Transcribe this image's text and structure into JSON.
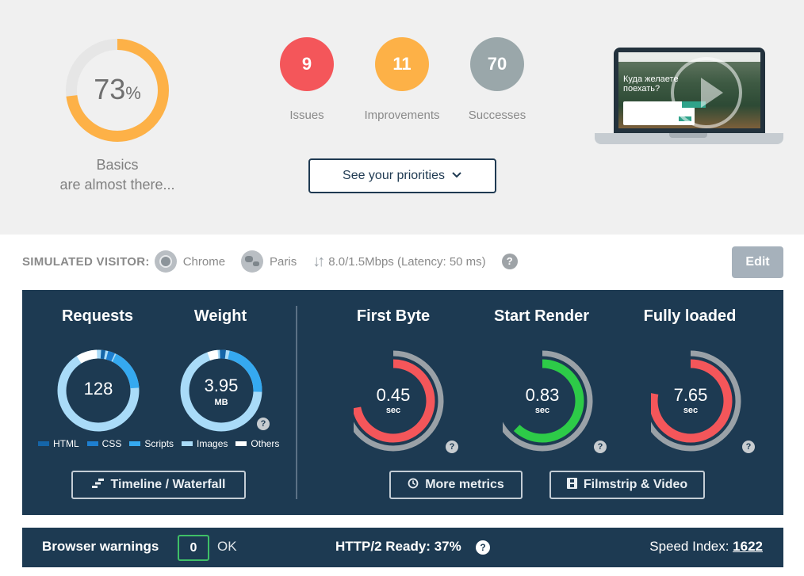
{
  "summary": {
    "score_value": "73",
    "score_unit": "%",
    "score_fraction": 0.73,
    "caption_line1": "Basics",
    "caption_line2": "are almost there...",
    "issues": {
      "count": "9",
      "label": "Issues",
      "color": "#f4565a"
    },
    "improvements": {
      "count": "11",
      "label": "Improvements",
      "color": "#fdb147"
    },
    "successes": {
      "count": "70",
      "label": "Successes",
      "color": "#9aa7aa"
    },
    "priorities_button": "See your priorities",
    "preview_headline": "Куда желаете поехать?"
  },
  "visitor": {
    "label": "SIMULATED VISITOR:",
    "browser": "Chrome",
    "location": "Paris",
    "connection": "8.0/1.5Mbps (Latency: 50 ms)",
    "help": "?",
    "edit_button": "Edit"
  },
  "metrics": {
    "requests": {
      "title": "Requests",
      "value": "128"
    },
    "weight": {
      "title": "Weight",
      "value": "3.95",
      "unit": "MB"
    },
    "legend": [
      {
        "label": "HTML",
        "color": "#1565a8"
      },
      {
        "label": "CSS",
        "color": "#1e7fd0"
      },
      {
        "label": "Scripts",
        "color": "#35a9f0"
      },
      {
        "label": "Images",
        "color": "#a9dbf8"
      },
      {
        "label": "Others",
        "color": "#ffffff"
      }
    ],
    "first_byte": {
      "title": "First Byte",
      "value": "0.45",
      "unit": "sec",
      "color": "#f4565a",
      "fraction": 0.72
    },
    "start_render": {
      "title": "Start Render",
      "value": "0.83",
      "unit": "sec",
      "color": "#2dcb48",
      "fraction": 0.62
    },
    "fully_loaded": {
      "title": "Fully loaded",
      "value": "7.65",
      "unit": "sec",
      "color": "#f4565a",
      "fraction": 0.78
    },
    "timeline_button": "Timeline / Waterfall",
    "more_metrics_button": "More metrics",
    "filmstrip_button": "Filmstrip & Video"
  },
  "bottom": {
    "browser_warnings_label": "Browser warnings",
    "browser_warnings_count": "0",
    "browser_warnings_status": "OK",
    "http2": "HTTP/2 Ready: 37%",
    "speed_index_label": "Speed Index:",
    "speed_index_value": "1622"
  }
}
